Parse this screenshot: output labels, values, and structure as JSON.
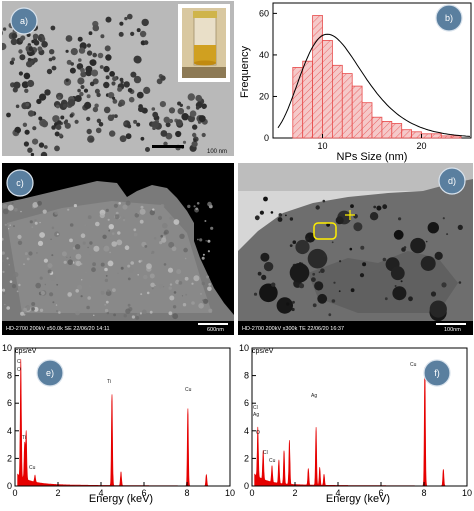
{
  "panels": {
    "a": {
      "badge": "a)",
      "scalebar_label": "100 nm"
    },
    "b": {
      "badge": "b)"
    },
    "c": {
      "badge": "c)",
      "info_bar": "HD-2700 200kV x50.0k SE 22/06/20 14:11",
      "scale_label": "600nm"
    },
    "d": {
      "badge": "d)",
      "info_bar": "HD-2700 200kV x300k TE 22/06/20 16:37",
      "scale_label": "100nm"
    },
    "e": {
      "badge": "e)",
      "unit_label": "cps/eV",
      "peak_labels": [
        "C",
        "O",
        "Ti",
        "Cu",
        "Ti",
        "Cu"
      ]
    },
    "f": {
      "badge": "f)",
      "unit_label": "cps/eV",
      "peak_labels": [
        "Cl",
        "Ag",
        "O",
        "Cl",
        "Cu",
        "Ag",
        "Cu"
      ]
    }
  },
  "colors": {
    "hist_fill": "#f5c9c9",
    "hist_edge": "#e84b4b",
    "spectrum": "#e60000",
    "badge": "#5a7f9f"
  },
  "chart_data": [
    {
      "type": "bar",
      "panel": "b",
      "bins": [
        [
          7,
          8
        ],
        [
          8,
          9
        ],
        [
          9,
          10
        ],
        [
          10,
          11
        ],
        [
          11,
          12
        ],
        [
          12,
          13
        ],
        [
          13,
          14
        ],
        [
          14,
          15
        ],
        [
          15,
          16
        ],
        [
          16,
          17
        ],
        [
          17,
          18
        ],
        [
          18,
          19
        ],
        [
          19,
          20
        ],
        [
          20,
          21
        ],
        [
          21,
          22
        ],
        [
          22,
          23
        ],
        [
          23,
          24
        ]
      ],
      "values": [
        34,
        37,
        59,
        47,
        35,
        31,
        25,
        17,
        10,
        8,
        7,
        4,
        3,
        2,
        2,
        1,
        1
      ],
      "fit": {
        "kind": "lognormal",
        "peak_x": 10.5,
        "peak_y": 50
      },
      "xlabel": "NPs Size (nm)",
      "ylabel": "Frequency",
      "xlim": [
        5,
        25
      ],
      "ylim": [
        0,
        65
      ],
      "xticks": [
        10,
        20
      ],
      "yticks": [
        0,
        20,
        40,
        60
      ]
    },
    {
      "type": "line",
      "panel": "e",
      "xlabel": "Energy (keV)",
      "xlim": [
        0,
        10
      ],
      "ylim": [
        0,
        10
      ],
      "xticks": [
        0,
        2,
        4,
        6,
        8,
        10
      ],
      "yticks": [
        0,
        2,
        4,
        6,
        8,
        10
      ],
      "peaks": [
        {
          "x": 0.27,
          "y": 8.5,
          "label": "C"
        },
        {
          "x": 0.52,
          "y": 3.5,
          "label": "O"
        },
        {
          "x": 0.45,
          "y": 2.6,
          "label": "Ti"
        },
        {
          "x": 0.93,
          "y": 0.5,
          "label": "Cu"
        },
        {
          "x": 4.51,
          "y": 6.6,
          "label": "Ti"
        },
        {
          "x": 4.93,
          "y": 1.0
        },
        {
          "x": 8.04,
          "y": 5.6,
          "label": "Cu"
        },
        {
          "x": 8.9,
          "y": 0.8
        }
      ]
    },
    {
      "type": "line",
      "panel": "f",
      "xlabel": "Energy (keV)",
      "xlim": [
        0,
        10
      ],
      "ylim": [
        0,
        10
      ],
      "xticks": [
        0,
        2,
        4,
        6,
        8,
        10
      ],
      "yticks": [
        0,
        2,
        4,
        6,
        8,
        10
      ],
      "peaks": [
        {
          "x": 0.27,
          "y": 3.6
        },
        {
          "x": 0.52,
          "y": 2.1
        },
        {
          "x": 0.93,
          "y": 1.2
        },
        {
          "x": 1.25,
          "y": 1.7
        },
        {
          "x": 1.49,
          "y": 2.4
        },
        {
          "x": 1.74,
          "y": 3.2
        },
        {
          "x": 2.62,
          "y": 1.2,
          "label": "Cl"
        },
        {
          "x": 2.98,
          "y": 4.2,
          "label": "Ag"
        },
        {
          "x": 3.15,
          "y": 1.3
        },
        {
          "x": 3.35,
          "y": 0.8
        },
        {
          "x": 8.04,
          "y": 8.6,
          "label": "Cu"
        },
        {
          "x": 8.9,
          "y": 1.2
        }
      ]
    }
  ]
}
